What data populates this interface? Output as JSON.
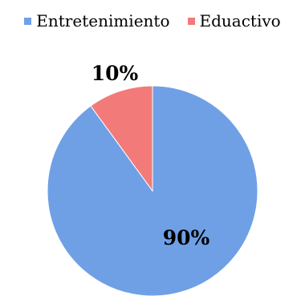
{
  "chart_data": {
    "type": "pie",
    "categories": [
      "Entretenimiento",
      "Eduactivo"
    ],
    "values": [
      90,
      10
    ],
    "data_labels": [
      "90%",
      "10%"
    ],
    "colors": [
      "#6fa0e6",
      "#f27b79"
    ],
    "legend_position": "top",
    "title": "",
    "xlabel": "",
    "ylabel": ""
  }
}
